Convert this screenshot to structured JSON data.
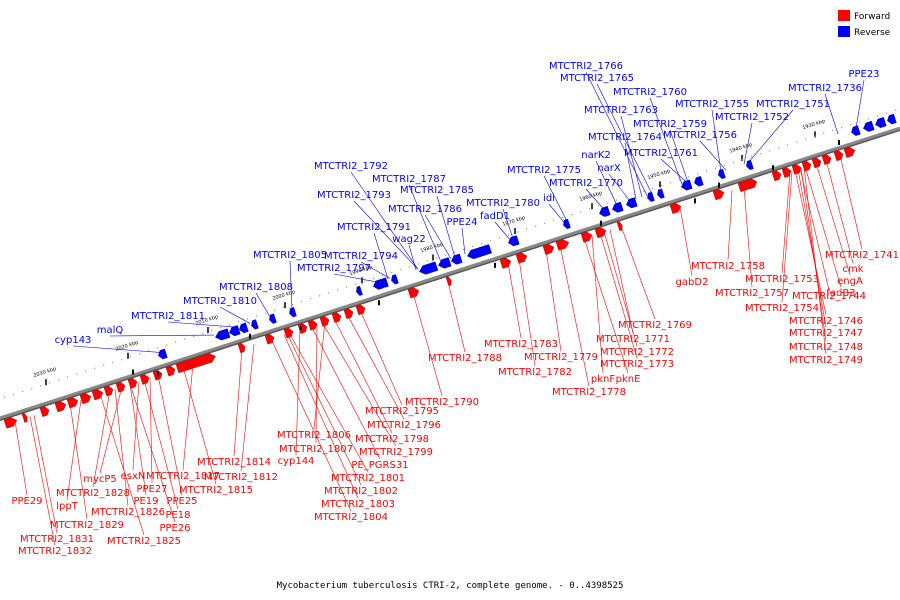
{
  "caption": "Mycobacterium tuberculosis CTRI-2, complete genome. - 0..4398525",
  "legend": [
    {
      "label": "Forward",
      "color": "#ff0000"
    },
    {
      "label": "Reverse",
      "color": "#0000ff"
    }
  ],
  "colors": {
    "forward": "#ff0000",
    "reverse": "#0000ff",
    "backbone": "#888888"
  },
  "ticks": [
    "1930 kbp",
    "1940 kbp",
    "1950 kbp",
    "1960 kbp",
    "1970 kbp",
    "1980 kbp",
    "1990 kbp",
    "2000 kbp",
    "2010 kbp",
    "2020 kbp",
    "2030 kbp"
  ],
  "reverse_labels": [
    "MTCTRI2_1766",
    "MTCTRI2_1765",
    "MTCTRI2_1760",
    "MTCTRI2_1763",
    "MTCTRI2_1755",
    "MTCTRI2_1759",
    "MTCTRI2_1764",
    "MTCTRI2_1756",
    "MTCTRI2_1761",
    "MTCTRI2_1751",
    "MTCTRI2_1752",
    "MTCTRI2_1736",
    "PPE23",
    "narK2",
    "narX",
    "MTCTRI2_1775",
    "MTCTRI2_1770",
    "idi",
    "MTCTRI2_1780",
    "fadD1",
    "MTCTRI2_1792",
    "MTCTRI2_1787",
    "MTCTRI2_1785",
    "MTCTRI2_1793",
    "MTCTRI2_1786",
    "PPE24",
    "MTCTRI2_1791",
    "wag22",
    "MTCTRI2_1805",
    "MTCTRI2_1794",
    "MTCTRI2_1797",
    "MTCTRI2_1808",
    "MTCTRI2_1810",
    "MTCTRI2_1811",
    "malQ",
    "cyp143"
  ],
  "forward_labels": [
    "MTCTRI2_1741",
    "cmk",
    "engA",
    "MTCTRI2_1753",
    "fadB3",
    "MTCTRI2_1758",
    "MTCTRI2_1744",
    "MTCTRI2_1757",
    "MTCTRI2_1754",
    "MTCTRI2_1746",
    "MTCTRI2_1747",
    "MTCTRI2_1748",
    "MTCTRI2_1749",
    "gabD2",
    "MTCTRI2_1769",
    "MTCTRI2_1771",
    "MTCTRI2_1772",
    "MTCTRI2_1773",
    "MTCTRI2_1783",
    "MTCTRI2_1779",
    "MTCTRI2_1788",
    "MTCTRI2_1782",
    "pknF",
    "pknE",
    "MTCTRI2_1778",
    "MTCTRI2_1790",
    "MTCTRI2_1795",
    "MTCTRI2_1796",
    "MTCTRI2_1806",
    "MTCTRI2_1798",
    "MTCTRI2_1807",
    "MTCTRI2_1799",
    "MTCTRI2_1814",
    "cyp144",
    "PE_PGRS31",
    "MTCTRI2_1801",
    "MTCTRI2_1812",
    "MTCTRI2_1802",
    "MTCTRI2_1803",
    "MTCTRI2_1804",
    "MTCTRI2_1817",
    "MTCTRI2_1815",
    "mycP5",
    "esxN",
    "PPE27",
    "MTCTRI2_1828",
    "PE19",
    "PPE25",
    "lppT",
    "MTCTRI2_1826",
    "PE18",
    "PPE26",
    "MTCTRI2_1829",
    "MTCTRI2_1825",
    "PPE29",
    "MTCTRI2_1831",
    "MTCTRI2_1832"
  ]
}
